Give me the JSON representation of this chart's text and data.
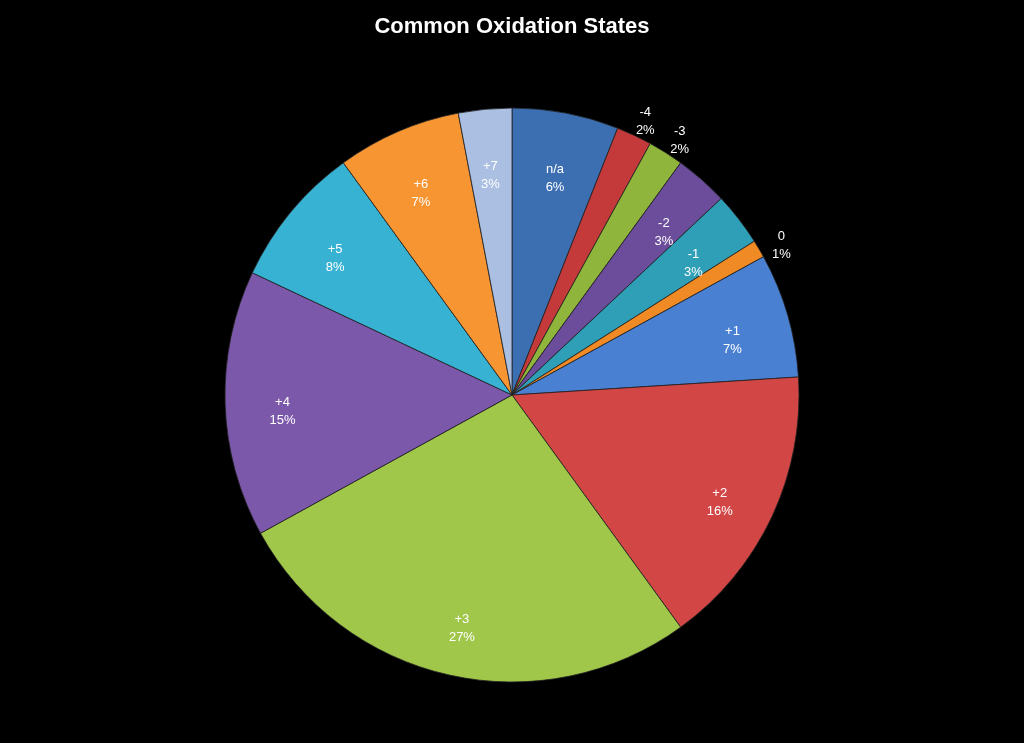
{
  "chart_data": {
    "type": "pie",
    "title": "Common Oxidation States",
    "categories": [
      "n/a",
      "-4",
      "-3",
      "-2",
      "-1",
      "0",
      "+1",
      "+2",
      "+3",
      "+4",
      "+5",
      "+6",
      "+7"
    ],
    "values": [
      6,
      2,
      2,
      3,
      3,
      1,
      7,
      16,
      27,
      15,
      8,
      7,
      3
    ],
    "value_labels": [
      "6%",
      "2%",
      "2%",
      "3%",
      "3%",
      "1%",
      "7%",
      "16%",
      "27%",
      "15%",
      "8%",
      "7%",
      "3%"
    ],
    "colors": [
      "#3b6fb2",
      "#c43a3a",
      "#8fb53c",
      "#6c4d9c",
      "#2f9fb8",
      "#f08a24",
      "#4a80d2",
      "#d24646",
      "#a0c64a",
      "#7c58aa",
      "#38b2d2",
      "#f69532",
      "#aabfe2"
    ],
    "legend": false
  }
}
